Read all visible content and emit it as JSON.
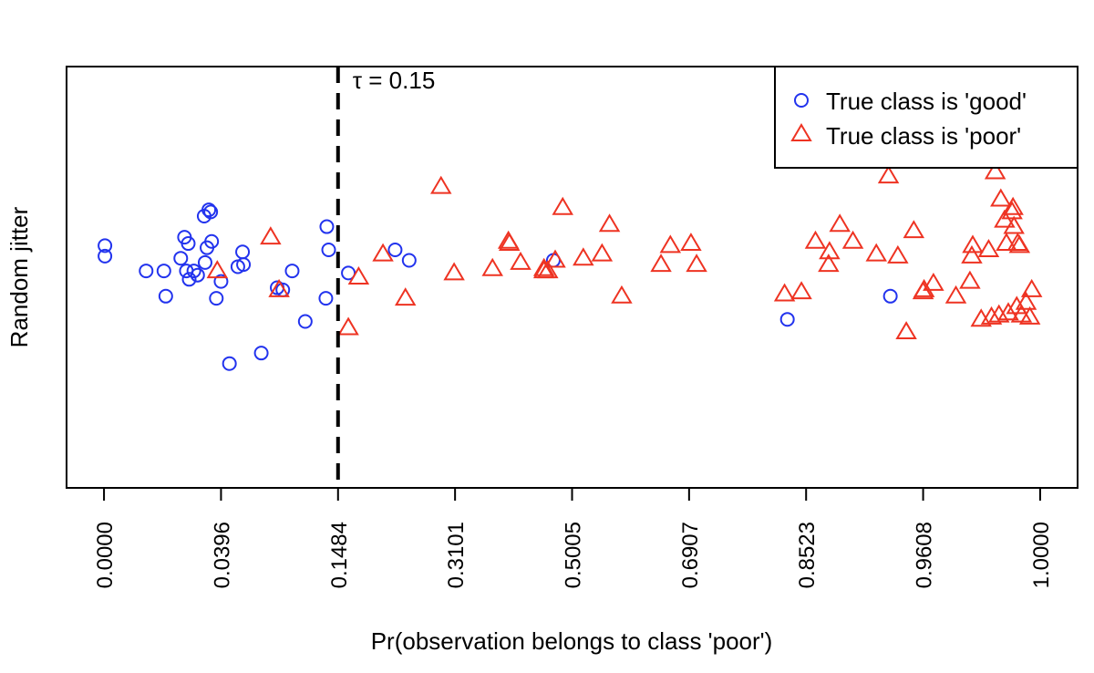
{
  "chart_data": {
    "type": "scatter",
    "title": "",
    "xlabel": "Pr(observation belongs to class 'poor')",
    "ylabel": "Random jitter",
    "x_scale": "quantile",
    "x_ticks": [
      "0.0000",
      "0.0396",
      "0.1484",
      "0.3101",
      "0.5005",
      "0.6907",
      "0.8523",
      "0.9608",
      "1.0000"
    ],
    "x_tick_positions": [
      0,
      0.125,
      0.25,
      0.375,
      0.5,
      0.625,
      0.75,
      0.875,
      1
    ],
    "xlim": [
      -0.04,
      1.04
    ],
    "ylim": [
      -1,
      1
    ],
    "grid": false,
    "legend_position": "top-right",
    "threshold": {
      "value": 0.15,
      "label": "τ = 0.15",
      "style": "dashed"
    },
    "colors": {
      "good": "#2233ee",
      "poor": "#ee3322"
    },
    "series": [
      {
        "name": "True class is 'good'",
        "marker": "circle",
        "color": "#2233ee",
        "points": [
          [
            0.001,
            0.15
          ],
          [
            0.001,
            0.1
          ],
          [
            0.045,
            0.03
          ],
          [
            0.064,
            0.03
          ],
          [
            0.066,
            -0.09
          ],
          [
            0.082,
            0.09
          ],
          [
            0.086,
            0.19
          ],
          [
            0.09,
            0.16
          ],
          [
            0.088,
            0.03
          ],
          [
            0.091,
            -0.01
          ],
          [
            0.096,
            0.03
          ],
          [
            0.1,
            0.01
          ],
          [
            0.107,
            0.29
          ],
          [
            0.108,
            0.07
          ],
          [
            0.11,
            0.14
          ],
          [
            0.112,
            0.32
          ],
          [
            0.114,
            0.31
          ],
          [
            0.115,
            0.17
          ],
          [
            0.12,
            -0.1
          ],
          [
            0.125,
            -0.02
          ],
          [
            0.134,
            -0.41
          ],
          [
            0.143,
            0.05
          ],
          [
            0.149,
            0.06
          ],
          [
            0.148,
            0.12
          ],
          [
            0.168,
            -0.36
          ],
          [
            0.185,
            -0.05
          ],
          [
            0.191,
            -0.06
          ],
          [
            0.201,
            0.03
          ],
          [
            0.215,
            -0.21
          ],
          [
            0.238,
            0.24
          ],
          [
            0.24,
            0.13
          ],
          [
            0.237,
            -0.1
          ],
          [
            0.261,
            0.02
          ],
          [
            0.311,
            0.13
          ],
          [
            0.326,
            0.08
          ],
          [
            0.48,
            0.08
          ],
          [
            0.73,
            -0.2
          ],
          [
            0.84,
            -0.09
          ]
        ]
      },
      {
        "name": "True class is 'poor'",
        "marker": "triangle",
        "color": "#ee3322",
        "points": [
          [
            0.121,
            0.03
          ],
          [
            0.178,
            0.19
          ],
          [
            0.187,
            -0.06
          ],
          [
            0.261,
            -0.24
          ],
          [
            0.272,
            0.0
          ],
          [
            0.298,
            0.11
          ],
          [
            0.322,
            -0.1
          ],
          [
            0.36,
            0.43
          ],
          [
            0.374,
            0.02
          ],
          [
            0.415,
            0.04
          ],
          [
            0.432,
            0.17
          ],
          [
            0.433,
            0.16
          ],
          [
            0.445,
            0.07
          ],
          [
            0.47,
            0.03
          ],
          [
            0.47,
            0.04
          ],
          [
            0.474,
            0.03
          ],
          [
            0.482,
            0.08
          ],
          [
            0.49,
            0.33
          ],
          [
            0.512,
            0.09
          ],
          [
            0.532,
            0.11
          ],
          [
            0.54,
            0.25
          ],
          [
            0.553,
            -0.09
          ],
          [
            0.595,
            0.06
          ],
          [
            0.605,
            0.15
          ],
          [
            0.627,
            0.16
          ],
          [
            0.633,
            0.06
          ],
          [
            0.727,
            -0.08
          ],
          [
            0.745,
            -0.07
          ],
          [
            0.76,
            0.17
          ],
          [
            0.774,
            0.06
          ],
          [
            0.775,
            0.12
          ],
          [
            0.786,
            0.25
          ],
          [
            0.8,
            0.17
          ],
          [
            0.825,
            0.11
          ],
          [
            0.838,
            0.48
          ],
          [
            0.848,
            0.1
          ],
          [
            0.857,
            -0.26
          ],
          [
            0.865,
            0.22
          ],
          [
            0.875,
            -0.07
          ],
          [
            0.876,
            -0.06
          ],
          [
            0.886,
            -0.03
          ],
          [
            0.91,
            -0.09
          ],
          [
            0.925,
            -0.02
          ],
          [
            0.927,
            0.1
          ],
          [
            0.928,
            0.15
          ],
          [
            0.945,
            0.13
          ],
          [
            0.937,
            -0.2
          ],
          [
            0.948,
            -0.19
          ],
          [
            0.952,
            0.5
          ],
          [
            0.956,
            -0.18
          ],
          [
            0.958,
            0.37
          ],
          [
            0.962,
            0.27
          ],
          [
            0.964,
            0.16
          ],
          [
            0.966,
            -0.17
          ],
          [
            0.97,
            0.31
          ],
          [
            0.971,
            0.33
          ],
          [
            0.972,
            0.24
          ],
          [
            0.975,
            -0.14
          ],
          [
            0.976,
            0.16
          ],
          [
            0.978,
            0.15
          ],
          [
            0.98,
            -0.18
          ],
          [
            0.985,
            -0.12
          ],
          [
            0.991,
            -0.06
          ],
          [
            0.989,
            -0.19
          ]
        ]
      }
    ]
  }
}
